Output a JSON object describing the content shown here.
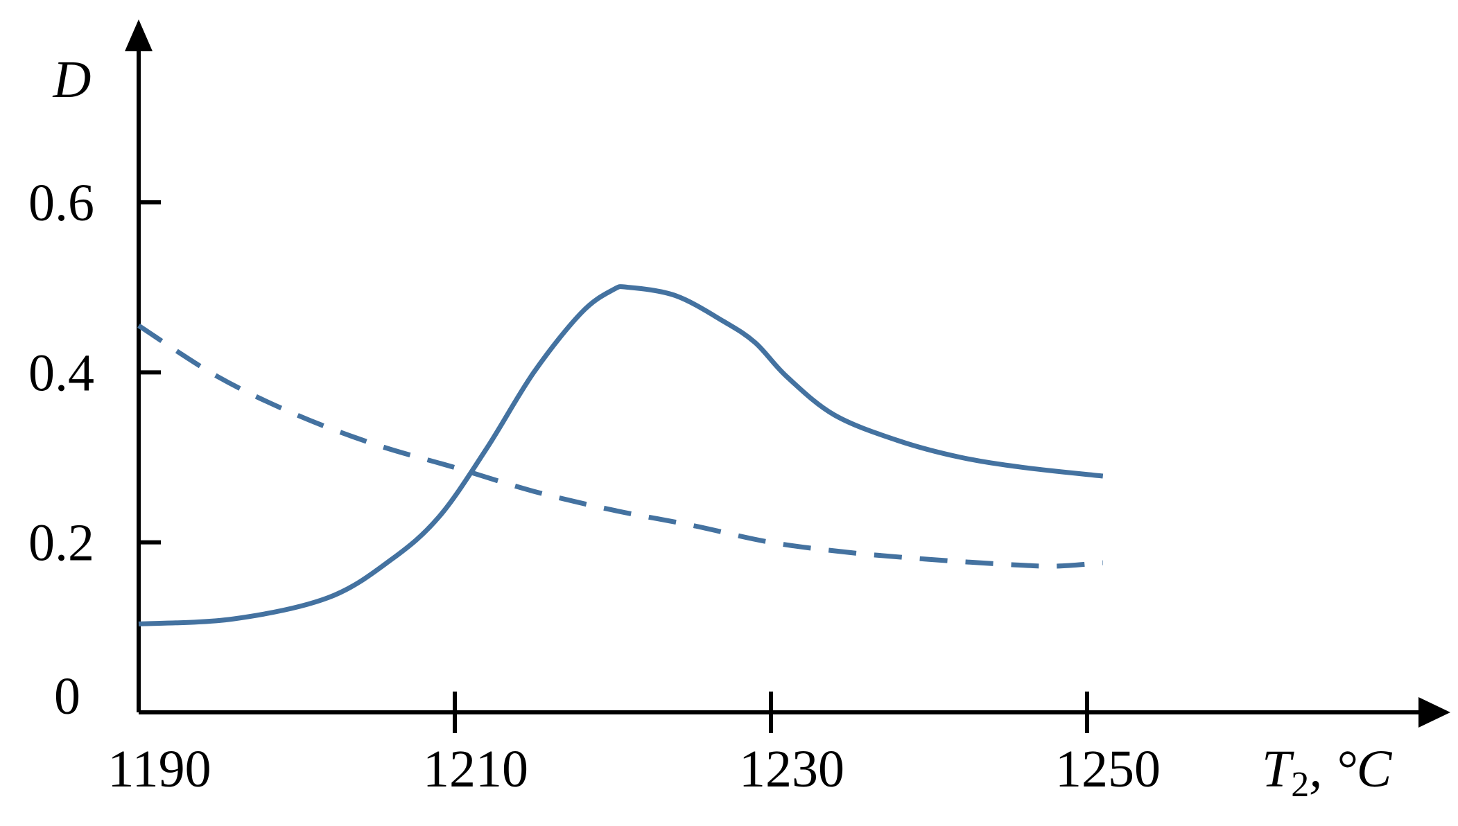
{
  "chart_data": {
    "type": "line",
    "xlabel": "T",
    "xlabel_sub": "2",
    "xlabel_unit": ", °C",
    "ylabel": "D",
    "xlim": [
      1190,
      1254
    ],
    "ylim": [
      0,
      0.66
    ],
    "x_ticks": [
      1190,
      1210,
      1230,
      1250
    ],
    "y_ticks": [
      0.2,
      0.4,
      0.6
    ],
    "y_tick_labels": [
      "0.2",
      "0.4",
      "0.6"
    ],
    "x_tick_labels": [
      "1190",
      "1210",
      "1230",
      "1250"
    ],
    "origin_label": "0",
    "grid": false,
    "line_color": "#4472a0",
    "series": [
      {
        "style": "solid",
        "x": [
          1190,
          1196,
          1202,
          1206,
          1209,
          1212,
          1215,
          1218,
          1220,
          1221,
          1224,
          1227,
          1229,
          1231,
          1234,
          1238,
          1242,
          1246,
          1251
        ],
        "y": [
          0.104,
          0.11,
          0.135,
          0.18,
          0.23,
          0.31,
          0.4,
          0.47,
          0.497,
          0.5,
          0.49,
          0.46,
          0.435,
          0.395,
          0.35,
          0.32,
          0.3,
          0.288,
          0.278
        ]
      },
      {
        "style": "dashed",
        "x": [
          1190,
          1195,
          1200,
          1205,
          1210,
          1215,
          1220,
          1225,
          1230,
          1235,
          1240,
          1245,
          1248,
          1251
        ],
        "y": [
          0.455,
          0.395,
          0.35,
          0.315,
          0.288,
          0.26,
          0.238,
          0.22,
          0.2,
          0.188,
          0.18,
          0.174,
          0.172,
          0.176
        ]
      }
    ]
  }
}
